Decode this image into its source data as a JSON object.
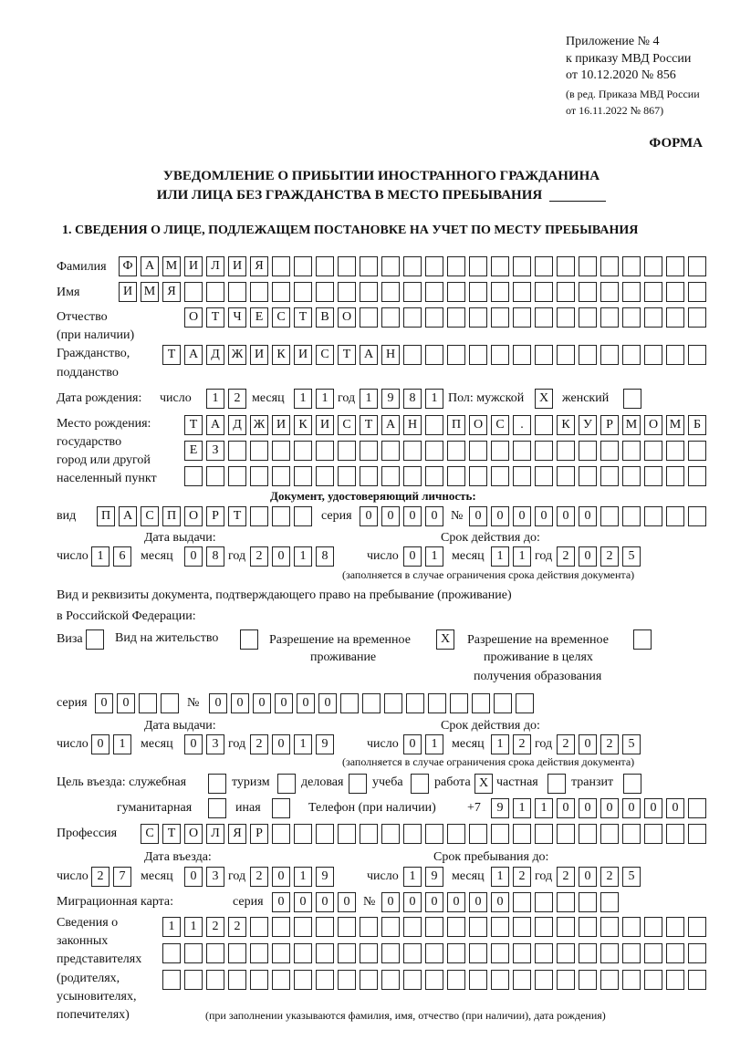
{
  "mark": "X",
  "header": {
    "appendix": "Приложение № 4",
    "order": "к приказу МВД России",
    "order_date": "от 10.12.2020 № 856",
    "revision_1": "(в ред. Приказа МВД России",
    "revision_2": "от 16.11.2022 № 867)",
    "form_label": "ФОРМА",
    "title_1": "УВЕДОМЛЕНИЕ О ПРИБЫТИИ ИНОСТРАННОГО ГРАЖДАНИНА",
    "title_2": "ИЛИ ЛИЦА БЕЗ ГРАЖДАНСТВА В МЕСТО ПРЕБЫВАНИЯ"
  },
  "section1": {
    "heading": "1. СВЕДЕНИЯ О ЛИЦЕ, ПОДЛЕЖАЩЕМ ПОСТАНОВКЕ НА УЧЕТ ПО МЕСТУ ПРЕБЫВАНИЯ",
    "surname": {
      "label": "Фамилия",
      "value": "ФАМИЛИЯ"
    },
    "name": {
      "label": "Имя",
      "value": "ИМЯ"
    },
    "patronymic": {
      "label_1": "Отчество",
      "label_2": "(при наличии)",
      "value": "ОТЧЕСТВО"
    },
    "citizenship": {
      "label_1": "Гражданство,",
      "label_2": "подданство",
      "value": "ТАДЖИКИСТАН"
    },
    "birth": {
      "label": "Дата рождения:",
      "day_label": "число",
      "day": "12",
      "month_label": "месяц",
      "month": "11",
      "year_label": "год",
      "year": "1981",
      "sex_label": "Пол: мужской",
      "male": true,
      "female_label": "женский",
      "female": false
    },
    "birthplace": {
      "label_1": "Место рождения:",
      "label_2": "государство",
      "label_3": "город или другой",
      "label_4": "населенный пункт",
      "line_1": "ТАДЖИКИСТАН ПОС. КУРМОМБ",
      "line_2": "ЕЗ",
      "line_3": ""
    },
    "identity_doc": {
      "heading": "Документ, удостоверяющий личность:",
      "type_label": "вид",
      "type": "ПАСПОРТ",
      "series_label": "серия",
      "series": "0000",
      "number_label": "№",
      "number": "000000",
      "issue_label": "Дата выдачи:",
      "issue": {
        "day": "16",
        "month": "08",
        "year": "2018"
      },
      "valid_label": "Срок действия до:",
      "valid": {
        "day": "01",
        "month": "11",
        "year": "2025"
      },
      "note": "(заполняется в случае ограничения срока действия документа)"
    },
    "residence_doc": {
      "label_1": "Вид и реквизиты документа, подтверждающего право на пребывание (проживание)",
      "label_2": "в Российской Федерации:",
      "visa_label": "Виза",
      "visa": false,
      "residence_permit_label": "Вид на жительство",
      "residence_permit": false,
      "temp_residence_label_1": "Разрешение на временное",
      "temp_residence_label_2": "проживание",
      "temp_residence": true,
      "temp_education_label_1": "Разрешение на временное",
      "temp_education_label_2": "проживание в целях",
      "temp_education_label_3": "получения образования",
      "temp_education": false,
      "series_label": "серия",
      "series": "00",
      "number_label": "№",
      "number": "000000",
      "issue_label": "Дата выдачи:",
      "issue": {
        "day": "01",
        "month": "03",
        "year": "2019"
      },
      "valid_label": "Срок действия до:",
      "valid": {
        "day": "01",
        "month": "12",
        "year": "2025"
      },
      "note": "(заполняется в случае ограничения срока действия документа)"
    },
    "date_labels": {
      "day": "число",
      "month": "месяц",
      "year": "год"
    },
    "purpose": {
      "label": "Цель въезда: служебная",
      "official": false,
      "tourism_label": "туризм",
      "tourism": false,
      "business_label": "деловая",
      "business": false,
      "study_label": "учеба",
      "study": false,
      "work_label": "работа",
      "work": true,
      "private_label": "частная",
      "private": false,
      "transit_label": "транзит",
      "transit": false,
      "humanitarian_label": "гуманитарная",
      "humanitarian": false,
      "other_label": "иная",
      "other": false
    },
    "phone": {
      "label": "Телефон (при наличии)",
      "prefix": "+7",
      "value": "911000000"
    },
    "profession": {
      "label": "Профессия",
      "value": "СТОЛЯР"
    },
    "entry": {
      "entry_label": "Дата въезда:",
      "entry": {
        "day": "27",
        "month": "03",
        "year": "2019"
      },
      "stay_label": "Срок пребывания до:",
      "stay": {
        "day": "19",
        "month": "12",
        "year": "2025"
      }
    },
    "migration_card": {
      "label": "Миграционная карта:",
      "series_label": "серия",
      "series": "0000",
      "number_label": "№",
      "number": "000000"
    },
    "legal_reps": {
      "label_1": "Сведения о",
      "label_2": "законных",
      "label_3": "представителях",
      "label_4": "(родителях,",
      "label_5": "усыновителях,",
      "label_6": "попечителях)",
      "line_1": "1122",
      "line_2": "",
      "line_3": "",
      "note": "(при заполнении указываются фамилия, имя, отчество (при наличии), дата рождения)"
    }
  }
}
